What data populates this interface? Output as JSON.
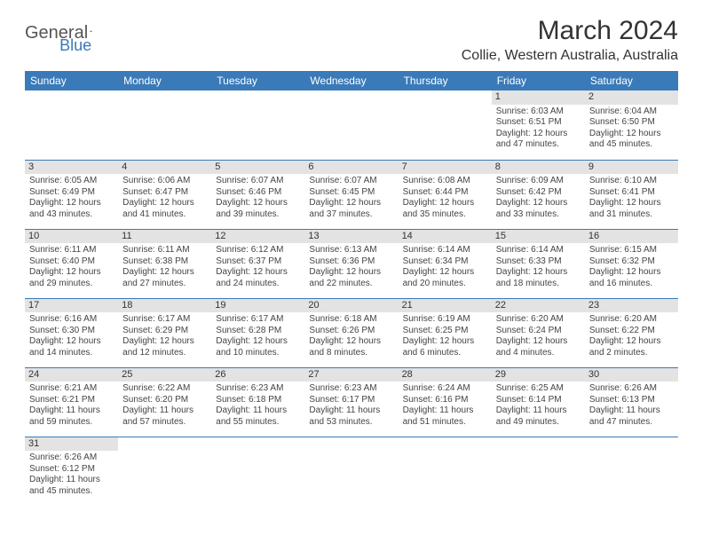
{
  "logo": {
    "part1": "General",
    "part2": "Blue"
  },
  "title": "March 2024",
  "location": "Collie, Western Australia, Australia",
  "styling": {
    "header_bg": "#3a7ab8",
    "header_fg": "#ffffff",
    "daynum_bg": "#e3e3e3",
    "row_border": "#3a7ab8",
    "body_font_size": 10,
    "header_font_size": 12,
    "title_font_size": 30,
    "location_font_size": 16
  },
  "day_headers": [
    "Sunday",
    "Monday",
    "Tuesday",
    "Wednesday",
    "Thursday",
    "Friday",
    "Saturday"
  ],
  "weeks": [
    [
      null,
      null,
      null,
      null,
      null,
      {
        "n": "1",
        "sr": "Sunrise: 6:03 AM",
        "ss": "Sunset: 6:51 PM",
        "dl": "Daylight: 12 hours and 47 minutes."
      },
      {
        "n": "2",
        "sr": "Sunrise: 6:04 AM",
        "ss": "Sunset: 6:50 PM",
        "dl": "Daylight: 12 hours and 45 minutes."
      }
    ],
    [
      {
        "n": "3",
        "sr": "Sunrise: 6:05 AM",
        "ss": "Sunset: 6:49 PM",
        "dl": "Daylight: 12 hours and 43 minutes."
      },
      {
        "n": "4",
        "sr": "Sunrise: 6:06 AM",
        "ss": "Sunset: 6:47 PM",
        "dl": "Daylight: 12 hours and 41 minutes."
      },
      {
        "n": "5",
        "sr": "Sunrise: 6:07 AM",
        "ss": "Sunset: 6:46 PM",
        "dl": "Daylight: 12 hours and 39 minutes."
      },
      {
        "n": "6",
        "sr": "Sunrise: 6:07 AM",
        "ss": "Sunset: 6:45 PM",
        "dl": "Daylight: 12 hours and 37 minutes."
      },
      {
        "n": "7",
        "sr": "Sunrise: 6:08 AM",
        "ss": "Sunset: 6:44 PM",
        "dl": "Daylight: 12 hours and 35 minutes."
      },
      {
        "n": "8",
        "sr": "Sunrise: 6:09 AM",
        "ss": "Sunset: 6:42 PM",
        "dl": "Daylight: 12 hours and 33 minutes."
      },
      {
        "n": "9",
        "sr": "Sunrise: 6:10 AM",
        "ss": "Sunset: 6:41 PM",
        "dl": "Daylight: 12 hours and 31 minutes."
      }
    ],
    [
      {
        "n": "10",
        "sr": "Sunrise: 6:11 AM",
        "ss": "Sunset: 6:40 PM",
        "dl": "Daylight: 12 hours and 29 minutes."
      },
      {
        "n": "11",
        "sr": "Sunrise: 6:11 AM",
        "ss": "Sunset: 6:38 PM",
        "dl": "Daylight: 12 hours and 27 minutes."
      },
      {
        "n": "12",
        "sr": "Sunrise: 6:12 AM",
        "ss": "Sunset: 6:37 PM",
        "dl": "Daylight: 12 hours and 24 minutes."
      },
      {
        "n": "13",
        "sr": "Sunrise: 6:13 AM",
        "ss": "Sunset: 6:36 PM",
        "dl": "Daylight: 12 hours and 22 minutes."
      },
      {
        "n": "14",
        "sr": "Sunrise: 6:14 AM",
        "ss": "Sunset: 6:34 PM",
        "dl": "Daylight: 12 hours and 20 minutes."
      },
      {
        "n": "15",
        "sr": "Sunrise: 6:14 AM",
        "ss": "Sunset: 6:33 PM",
        "dl": "Daylight: 12 hours and 18 minutes."
      },
      {
        "n": "16",
        "sr": "Sunrise: 6:15 AM",
        "ss": "Sunset: 6:32 PM",
        "dl": "Daylight: 12 hours and 16 minutes."
      }
    ],
    [
      {
        "n": "17",
        "sr": "Sunrise: 6:16 AM",
        "ss": "Sunset: 6:30 PM",
        "dl": "Daylight: 12 hours and 14 minutes."
      },
      {
        "n": "18",
        "sr": "Sunrise: 6:17 AM",
        "ss": "Sunset: 6:29 PM",
        "dl": "Daylight: 12 hours and 12 minutes."
      },
      {
        "n": "19",
        "sr": "Sunrise: 6:17 AM",
        "ss": "Sunset: 6:28 PM",
        "dl": "Daylight: 12 hours and 10 minutes."
      },
      {
        "n": "20",
        "sr": "Sunrise: 6:18 AM",
        "ss": "Sunset: 6:26 PM",
        "dl": "Daylight: 12 hours and 8 minutes."
      },
      {
        "n": "21",
        "sr": "Sunrise: 6:19 AM",
        "ss": "Sunset: 6:25 PM",
        "dl": "Daylight: 12 hours and 6 minutes."
      },
      {
        "n": "22",
        "sr": "Sunrise: 6:20 AM",
        "ss": "Sunset: 6:24 PM",
        "dl": "Daylight: 12 hours and 4 minutes."
      },
      {
        "n": "23",
        "sr": "Sunrise: 6:20 AM",
        "ss": "Sunset: 6:22 PM",
        "dl": "Daylight: 12 hours and 2 minutes."
      }
    ],
    [
      {
        "n": "24",
        "sr": "Sunrise: 6:21 AM",
        "ss": "Sunset: 6:21 PM",
        "dl": "Daylight: 11 hours and 59 minutes."
      },
      {
        "n": "25",
        "sr": "Sunrise: 6:22 AM",
        "ss": "Sunset: 6:20 PM",
        "dl": "Daylight: 11 hours and 57 minutes."
      },
      {
        "n": "26",
        "sr": "Sunrise: 6:23 AM",
        "ss": "Sunset: 6:18 PM",
        "dl": "Daylight: 11 hours and 55 minutes."
      },
      {
        "n": "27",
        "sr": "Sunrise: 6:23 AM",
        "ss": "Sunset: 6:17 PM",
        "dl": "Daylight: 11 hours and 53 minutes."
      },
      {
        "n": "28",
        "sr": "Sunrise: 6:24 AM",
        "ss": "Sunset: 6:16 PM",
        "dl": "Daylight: 11 hours and 51 minutes."
      },
      {
        "n": "29",
        "sr": "Sunrise: 6:25 AM",
        "ss": "Sunset: 6:14 PM",
        "dl": "Daylight: 11 hours and 49 minutes."
      },
      {
        "n": "30",
        "sr": "Sunrise: 6:26 AM",
        "ss": "Sunset: 6:13 PM",
        "dl": "Daylight: 11 hours and 47 minutes."
      }
    ],
    [
      {
        "n": "31",
        "sr": "Sunrise: 6:26 AM",
        "ss": "Sunset: 6:12 PM",
        "dl": "Daylight: 11 hours and 45 minutes."
      },
      null,
      null,
      null,
      null,
      null,
      null
    ]
  ]
}
